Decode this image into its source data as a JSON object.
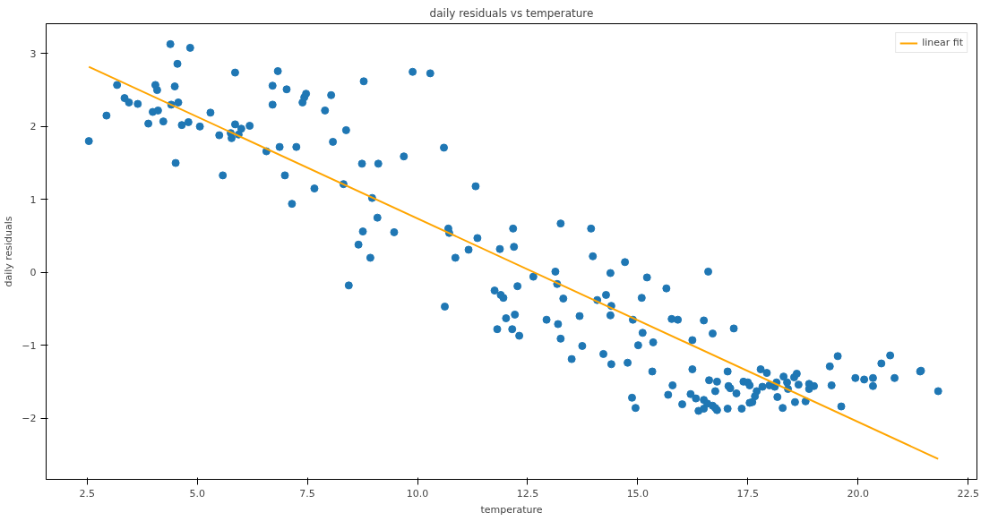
{
  "chart_data": {
    "type": "scatter",
    "title": "daily residuals vs temperature",
    "xlabel": "temperature",
    "ylabel": "daily residuals",
    "xlim": [
      1.57,
      22.7
    ],
    "ylim": [
      -2.84,
      3.41
    ],
    "xticks": [
      2.5,
      {
        "value": 5,
        "label": "5.0"
      },
      7.5,
      {
        "value": 10,
        "label": "10.0"
      },
      12.5,
      {
        "value": 15,
        "label": "15.0"
      },
      17.5,
      {
        "value": 20,
        "label": "20.0"
      },
      22.5
    ],
    "yticks": [
      {
        "value": -2,
        "label": "−2"
      },
      {
        "value": -1,
        "label": "−1"
      },
      0,
      1,
      2,
      3
    ],
    "grid": false,
    "legend": "top right",
    "series": [
      {
        "color": "#1f77b4",
        "marker": "circle",
        "x": [
          2.54,
          2.94,
          3.18,
          3.35,
          3.45,
          3.65,
          3.89,
          3.99,
          4.05,
          4.09,
          4.11,
          4.23,
          4.39,
          4.41,
          4.49,
          4.51,
          4.55,
          4.57,
          4.65,
          4.8,
          4.84,
          5.06,
          5.3,
          5.5,
          5.58,
          5.76,
          5.78,
          5.86,
          5.86,
          5.94,
          6.0,
          6.19,
          6.57,
          6.71,
          6.71,
          6.83,
          6.87,
          6.99,
          7.03,
          7.15,
          7.25,
          7.39,
          7.43,
          7.47,
          7.66,
          7.9,
          8.04,
          8.08,
          8.32,
          8.38,
          8.44,
          8.66,
          8.74,
          8.76,
          8.78,
          8.93,
          8.97,
          9.09,
          9.11,
          9.47,
          9.69,
          9.89,
          10.29,
          10.6,
          10.62,
          10.7,
          10.72,
          10.86,
          11.16,
          11.32,
          11.36,
          11.75,
          11.89,
          11.95,
          12.01,
          11.81,
          12.15,
          12.21,
          12.31,
          12.27,
          12.63,
          12.93,
          13.13,
          13.17,
          13.19,
          13.25,
          13.31,
          13.5,
          13.68,
          13.74,
          13.98,
          14.08,
          14.22,
          14.28,
          14.38,
          14.4,
          14.38,
          14.4,
          14.71,
          14.77,
          14.87,
          14.95,
          14.89,
          15.01,
          15.11,
          15.09,
          15.21,
          15.33,
          15.35,
          15.65,
          15.77,
          15.91,
          15.69,
          15.79,
          16.01,
          16.2,
          16.24,
          16.24,
          16.32,
          16.38,
          12.17,
          12.19,
          13.25,
          13.94,
          11.87,
          16.6,
          16.5,
          16.7,
          17.18,
          16.62,
          16.8,
          16.76,
          17.04,
          17.06,
          17.1,
          17.24,
          16.5,
          16.58,
          16.7,
          16.76,
          16.8,
          16.5,
          17.04,
          17.36,
          17.4,
          17.5,
          17.54,
          17.7,
          17.66,
          17.6,
          17.54,
          17.79,
          17.93,
          17.83,
          17.99,
          18.11,
          18.15,
          18.17,
          18.31,
          18.39,
          18.41,
          18.29,
          18.57,
          18.55,
          18.61,
          18.65,
          18.81,
          18.89,
          18.89,
          19.0,
          19.36,
          19.54,
          19.4,
          19.62,
          19.94,
          20.14,
          20.34,
          20.34,
          20.53,
          20.73,
          20.83,
          21.41,
          21.43,
          21.82
        ],
        "values": [
          1.8,
          2.15,
          2.57,
          2.39,
          2.33,
          2.31,
          2.04,
          2.2,
          2.57,
          2.5,
          2.22,
          2.07,
          3.13,
          2.3,
          2.55,
          1.5,
          2.86,
          2.33,
          2.02,
          2.06,
          3.08,
          2.0,
          2.19,
          1.88,
          1.33,
          1.91,
          1.84,
          2.74,
          2.03,
          1.89,
          1.97,
          2.01,
          1.66,
          2.56,
          2.3,
          2.76,
          1.72,
          1.33,
          2.51,
          0.94,
          1.72,
          2.33,
          2.4,
          2.45,
          1.15,
          2.22,
          2.43,
          1.79,
          1.21,
          1.95,
          -0.18,
          0.38,
          1.49,
          0.56,
          2.62,
          0.2,
          1.02,
          0.75,
          1.49,
          0.55,
          1.59,
          2.75,
          2.73,
          1.71,
          -0.47,
          0.6,
          0.54,
          0.2,
          0.31,
          1.18,
          0.47,
          -0.25,
          -0.31,
          -0.35,
          -0.63,
          -0.78,
          -0.78,
          -0.58,
          -0.87,
          -0.19,
          -0.06,
          -0.65,
          0.01,
          -0.16,
          -0.71,
          -0.91,
          -0.36,
          -1.19,
          -0.6,
          -1.01,
          0.22,
          -0.38,
          -1.12,
          -0.31,
          -0.01,
          -0.46,
          -0.59,
          -1.26,
          0.14,
          -1.24,
          -1.72,
          -1.86,
          -0.65,
          -1.0,
          -0.83,
          -0.35,
          -0.07,
          -1.36,
          -0.96,
          -0.22,
          -0.64,
          -0.65,
          -1.68,
          -1.55,
          -1.81,
          -1.67,
          -0.93,
          -1.33,
          -1.73,
          -1.9,
          0.6,
          0.35,
          0.67,
          0.6,
          0.32,
          0.01,
          -0.66,
          -0.84,
          -0.77,
          -1.48,
          -1.5,
          -1.63,
          -1.36,
          -1.56,
          -1.59,
          -1.66,
          -1.75,
          -1.8,
          -1.83,
          -1.86,
          -1.89,
          -1.87,
          -1.87,
          -1.87,
          -1.5,
          -1.51,
          -1.55,
          -1.63,
          -1.7,
          -1.78,
          -1.79,
          -1.33,
          -1.38,
          -1.57,
          -1.55,
          -1.57,
          -1.51,
          -1.71,
          -1.43,
          -1.51,
          -1.6,
          -1.86,
          -1.78,
          -1.44,
          -1.39,
          -1.54,
          -1.77,
          -1.53,
          -1.6,
          -1.56,
          -1.29,
          -1.15,
          -1.55,
          -1.84,
          -1.45,
          -1.47,
          -1.45,
          -1.56,
          -1.25,
          -1.14,
          -1.45,
          -1.36,
          -1.35,
          -1.63
        ]
      },
      {
        "type": "line",
        "name": "linear fit",
        "color": "#ffa500",
        "x": [
          2.54,
          21.82
        ],
        "values": [
          2.82,
          -2.56
        ]
      }
    ]
  }
}
